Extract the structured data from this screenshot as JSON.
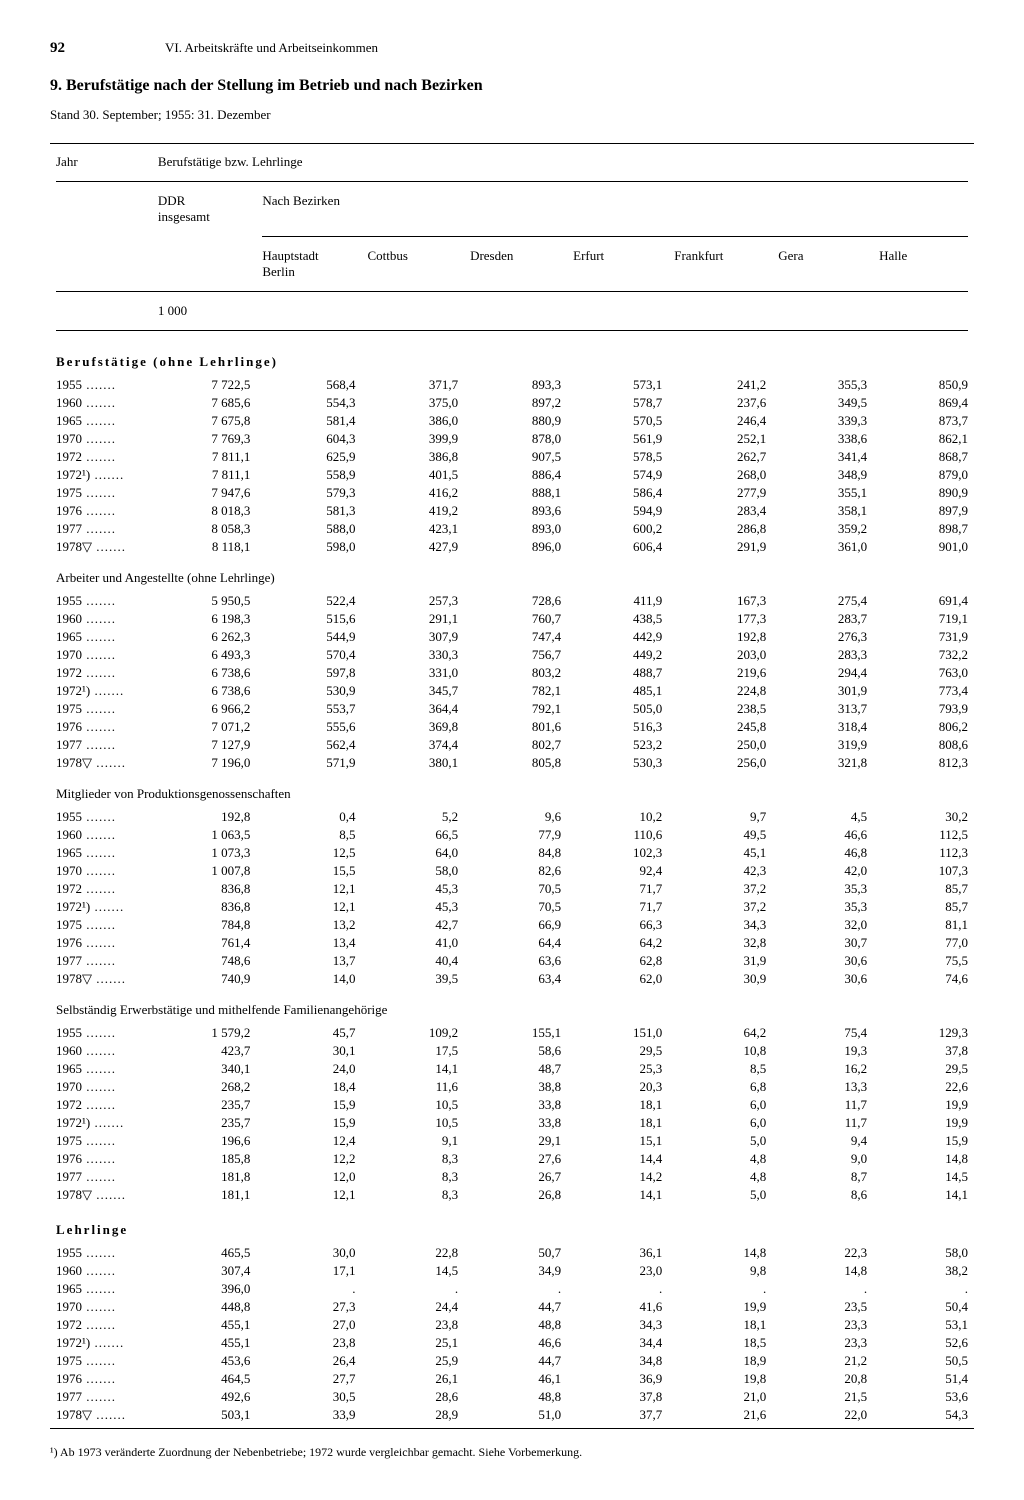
{
  "page_number": "92",
  "chapter": "VI. Arbeitskräfte und Arbeitseinkommen",
  "title": "9. Berufstätige nach der Stellung im Betrieb und nach Bezirken",
  "subtitle": "Stand 30. September; 1955: 31. Dezember",
  "headers": {
    "jahr": "Jahr",
    "group": "Berufstätige bzw. Lehrlinge",
    "ddr": "DDR\ninsgesamt",
    "bezirke": "Nach Bezirken",
    "cols": [
      "Hauptstadt\nBerlin",
      "Cottbus",
      "Dresden",
      "Erfurt",
      "Frankfurt",
      "Gera",
      "Halle"
    ],
    "unit": "1 000"
  },
  "years": [
    "1955",
    "1960",
    "1965",
    "1970",
    "1972",
    "1972¹)",
    "1975",
    "1976",
    "1977",
    "1978▽"
  ],
  "years_lehrlinge": [
    "1955",
    "1960",
    "1965",
    "1970",
    "1972",
    "1972¹)",
    "1975",
    "1976",
    "1977",
    "1978▽"
  ],
  "sections": [
    {
      "title": "Berufstätige (ohne Lehrlinge)",
      "bold": true,
      "rows": [
        [
          "7 722,5",
          "568,4",
          "371,7",
          "893,3",
          "573,1",
          "241,2",
          "355,3",
          "850,9"
        ],
        [
          "7 685,6",
          "554,3",
          "375,0",
          "897,2",
          "578,7",
          "237,6",
          "349,5",
          "869,4"
        ],
        [
          "7 675,8",
          "581,4",
          "386,0",
          "880,9",
          "570,5",
          "246,4",
          "339,3",
          "873,7"
        ],
        [
          "7 769,3",
          "604,3",
          "399,9",
          "878,0",
          "561,9",
          "252,1",
          "338,6",
          "862,1"
        ],
        [
          "7 811,1",
          "625,9",
          "386,8",
          "907,5",
          "578,5",
          "262,7",
          "341,4",
          "868,7"
        ],
        [
          "7 811,1",
          "558,9",
          "401,5",
          "886,4",
          "574,9",
          "268,0",
          "348,9",
          "879,0"
        ],
        [
          "7 947,6",
          "579,3",
          "416,2",
          "888,1",
          "586,4",
          "277,9",
          "355,1",
          "890,9"
        ],
        [
          "8 018,3",
          "581,3",
          "419,2",
          "893,6",
          "594,9",
          "283,4",
          "358,1",
          "897,9"
        ],
        [
          "8 058,3",
          "588,0",
          "423,1",
          "893,0",
          "600,2",
          "286,8",
          "359,2",
          "898,7"
        ],
        [
          "8 118,1",
          "598,0",
          "427,9",
          "896,0",
          "606,4",
          "291,9",
          "361,0",
          "901,0"
        ]
      ]
    },
    {
      "title": "Arbeiter und Angestellte (ohne Lehrlinge)",
      "bold": false,
      "rows": [
        [
          "5 950,5",
          "522,4",
          "257,3",
          "728,6",
          "411,9",
          "167,3",
          "275,4",
          "691,4"
        ],
        [
          "6 198,3",
          "515,6",
          "291,1",
          "760,7",
          "438,5",
          "177,3",
          "283,7",
          "719,1"
        ],
        [
          "6 262,3",
          "544,9",
          "307,9",
          "747,4",
          "442,9",
          "192,8",
          "276,3",
          "731,9"
        ],
        [
          "6 493,3",
          "570,4",
          "330,3",
          "756,7",
          "449,2",
          "203,0",
          "283,3",
          "732,2"
        ],
        [
          "6 738,6",
          "597,8",
          "331,0",
          "803,2",
          "488,7",
          "219,6",
          "294,4",
          "763,0"
        ],
        [
          "6 738,6",
          "530,9",
          "345,7",
          "782,1",
          "485,1",
          "224,8",
          "301,9",
          "773,4"
        ],
        [
          "6 966,2",
          "553,7",
          "364,4",
          "792,1",
          "505,0",
          "238,5",
          "313,7",
          "793,9"
        ],
        [
          "7 071,2",
          "555,6",
          "369,8",
          "801,6",
          "516,3",
          "245,8",
          "318,4",
          "806,2"
        ],
        [
          "7 127,9",
          "562,4",
          "374,4",
          "802,7",
          "523,2",
          "250,0",
          "319,9",
          "808,6"
        ],
        [
          "7 196,0",
          "571,9",
          "380,1",
          "805,8",
          "530,3",
          "256,0",
          "321,8",
          "812,3"
        ]
      ]
    },
    {
      "title": "Mitglieder von Produktionsgenossenschaften",
      "bold": false,
      "rows": [
        [
          "192,8",
          "0,4",
          "5,2",
          "9,6",
          "10,2",
          "9,7",
          "4,5",
          "30,2"
        ],
        [
          "1 063,5",
          "8,5",
          "66,5",
          "77,9",
          "110,6",
          "49,5",
          "46,6",
          "112,5"
        ],
        [
          "1 073,3",
          "12,5",
          "64,0",
          "84,8",
          "102,3",
          "45,1",
          "46,8",
          "112,3"
        ],
        [
          "1 007,8",
          "15,5",
          "58,0",
          "82,6",
          "92,4",
          "42,3",
          "42,0",
          "107,3"
        ],
        [
          "836,8",
          "12,1",
          "45,3",
          "70,5",
          "71,7",
          "37,2",
          "35,3",
          "85,7"
        ],
        [
          "836,8",
          "12,1",
          "45,3",
          "70,5",
          "71,7",
          "37,2",
          "35,3",
          "85,7"
        ],
        [
          "784,8",
          "13,2",
          "42,7",
          "66,9",
          "66,3",
          "34,3",
          "32,0",
          "81,1"
        ],
        [
          "761,4",
          "13,4",
          "41,0",
          "64,4",
          "64,2",
          "32,8",
          "30,7",
          "77,0"
        ],
        [
          "748,6",
          "13,7",
          "40,4",
          "63,6",
          "62,8",
          "31,9",
          "30,6",
          "75,5"
        ],
        [
          "740,9",
          "14,0",
          "39,5",
          "63,4",
          "62,0",
          "30,9",
          "30,6",
          "74,6"
        ]
      ]
    },
    {
      "title": "Selbständig Erwerbstätige und mithelfende Familienangehörige",
      "bold": false,
      "rows": [
        [
          "1 579,2",
          "45,7",
          "109,2",
          "155,1",
          "151,0",
          "64,2",
          "75,4",
          "129,3"
        ],
        [
          "423,7",
          "30,1",
          "17,5",
          "58,6",
          "29,5",
          "10,8",
          "19,3",
          "37,8"
        ],
        [
          "340,1",
          "24,0",
          "14,1",
          "48,7",
          "25,3",
          "8,5",
          "16,2",
          "29,5"
        ],
        [
          "268,2",
          "18,4",
          "11,6",
          "38,8",
          "20,3",
          "6,8",
          "13,3",
          "22,6"
        ],
        [
          "235,7",
          "15,9",
          "10,5",
          "33,8",
          "18,1",
          "6,0",
          "11,7",
          "19,9"
        ],
        [
          "235,7",
          "15,9",
          "10,5",
          "33,8",
          "18,1",
          "6,0",
          "11,7",
          "19,9"
        ],
        [
          "196,6",
          "12,4",
          "9,1",
          "29,1",
          "15,1",
          "5,0",
          "9,4",
          "15,9"
        ],
        [
          "185,8",
          "12,2",
          "8,3",
          "27,6",
          "14,4",
          "4,8",
          "9,0",
          "14,8"
        ],
        [
          "181,8",
          "12,0",
          "8,3",
          "26,7",
          "14,2",
          "4,8",
          "8,7",
          "14,5"
        ],
        [
          "181,1",
          "12,1",
          "8,3",
          "26,8",
          "14,1",
          "5,0",
          "8,6",
          "14,1"
        ]
      ]
    },
    {
      "title": "Lehrlinge",
      "bold": true,
      "rows": [
        [
          "465,5",
          "30,0",
          "22,8",
          "50,7",
          "36,1",
          "14,8",
          "22,3",
          "58,0"
        ],
        [
          "307,4",
          "17,1",
          "14,5",
          "34,9",
          "23,0",
          "9,8",
          "14,8",
          "38,2"
        ],
        [
          "396,0",
          ".",
          ".",
          ".",
          ".",
          ".",
          ".",
          "."
        ],
        [
          "448,8",
          "27,3",
          "24,4",
          "44,7",
          "41,6",
          "19,9",
          "23,5",
          "50,4"
        ],
        [
          "455,1",
          "27,0",
          "23,8",
          "48,8",
          "34,3",
          "18,1",
          "23,3",
          "53,1"
        ],
        [
          "455,1",
          "23,8",
          "25,1",
          "46,6",
          "34,4",
          "18,5",
          "23,3",
          "52,6"
        ],
        [
          "453,6",
          "26,4",
          "25,9",
          "44,7",
          "34,8",
          "18,9",
          "21,2",
          "50,5"
        ],
        [
          "464,5",
          "27,7",
          "26,1",
          "46,1",
          "36,9",
          "19,8",
          "20,8",
          "51,4"
        ],
        [
          "492,6",
          "30,5",
          "28,6",
          "48,8",
          "37,8",
          "21,0",
          "21,5",
          "53,6"
        ],
        [
          "503,1",
          "33,9",
          "28,9",
          "51,0",
          "37,7",
          "21,6",
          "22,0",
          "54,3"
        ]
      ]
    }
  ],
  "footnote": "¹) Ab 1973 veränderte Zuordnung der Nebenbetriebe; 1972 wurde vergleichbar gemacht. Siehe Vorbemerkung."
}
